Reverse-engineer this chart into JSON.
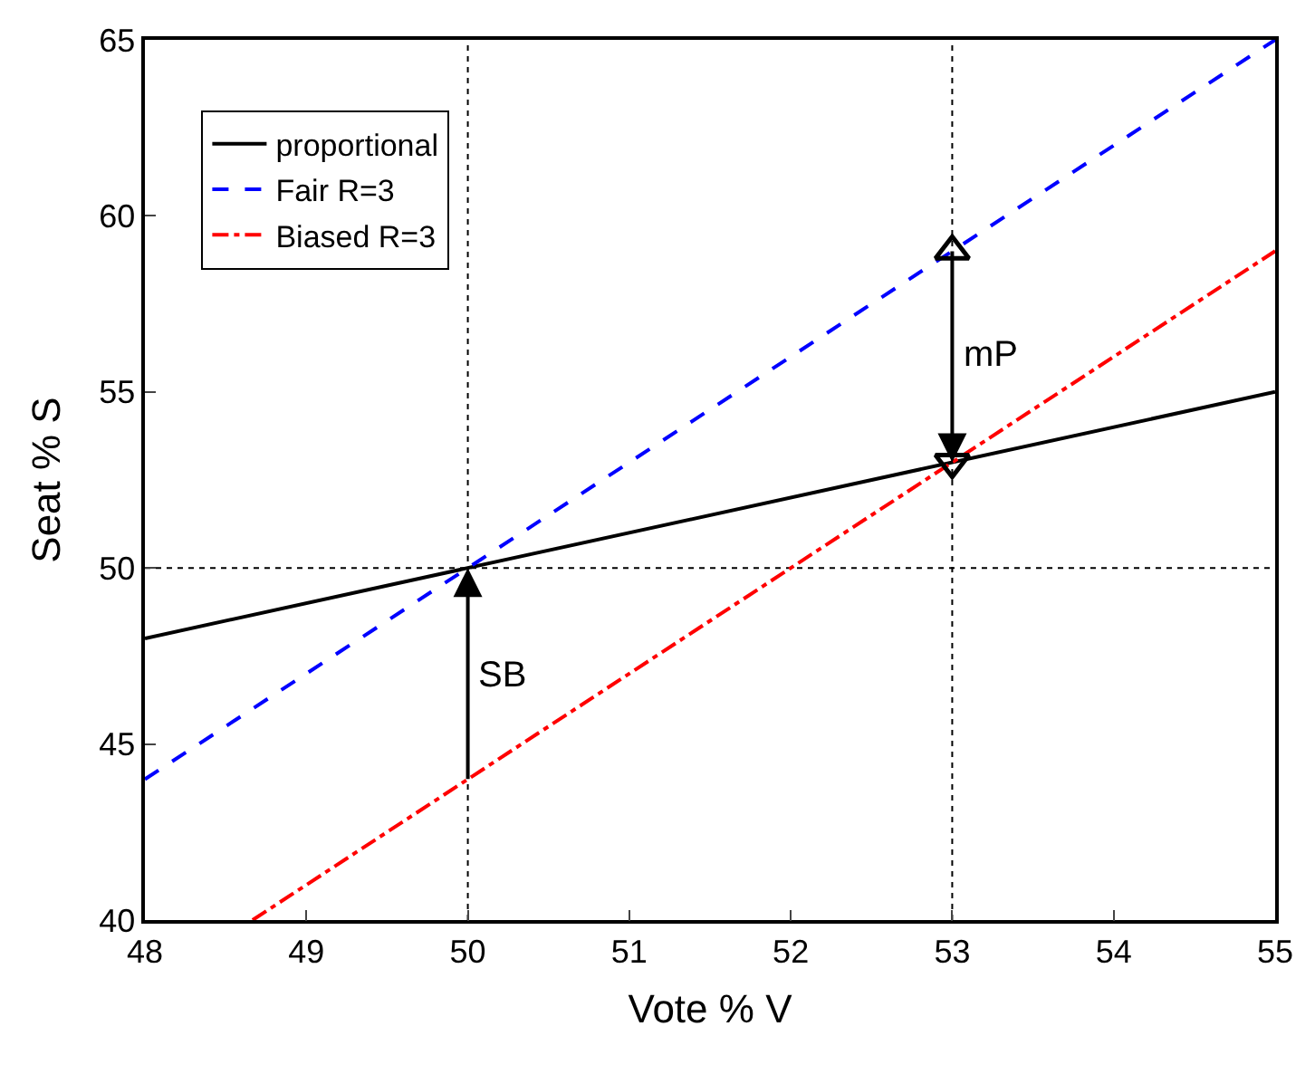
{
  "chart_data": {
    "type": "line",
    "xlabel": "Vote % V",
    "ylabel": "Seat % S",
    "xlim": [
      48,
      55
    ],
    "xticks": [
      48,
      49,
      50,
      51,
      52,
      53,
      54,
      55
    ],
    "ylim": [
      40,
      65
    ],
    "yticks": [
      40,
      45,
      50,
      55,
      60,
      65
    ],
    "legend": "top left",
    "series": [
      {
        "name": "proportional",
        "color": "#000000",
        "x": [
          48,
          55
        ],
        "values": [
          48,
          55
        ],
        "line_style": "solid"
      },
      {
        "name": "Fair R=3",
        "color": "#0000ff",
        "x": [
          48,
          55
        ],
        "values": [
          44,
          65
        ],
        "line_style": "dashed"
      },
      {
        "name": "Biased R=3",
        "color": "#ff0000",
        "x": [
          48.667,
          55
        ],
        "values": [
          40,
          59
        ],
        "line_style": "dashdot"
      },
      {
        "type": "scatter",
        "color": "#000000",
        "x": [
          53
        ],
        "values": [
          59
        ],
        "marker": "triangle-up"
      },
      {
        "type": "scatter",
        "color": "#000000",
        "x": [
          53
        ],
        "values": [
          53
        ],
        "marker": "triangle-down"
      }
    ],
    "ref_lines": [
      {
        "axis": "x",
        "value": 50,
        "line_style": "dotted",
        "color": "#000000"
      },
      {
        "axis": "x",
        "value": 53,
        "line_style": "dotted",
        "color": "#000000"
      },
      {
        "axis": "y",
        "value": 50,
        "line_style": "dotted",
        "color": "#000000"
      }
    ],
    "annotations": [
      {
        "text": "SB",
        "x": 50,
        "y": 50
      },
      {
        "text": "mP",
        "x": 53,
        "y": 53
      }
    ]
  }
}
